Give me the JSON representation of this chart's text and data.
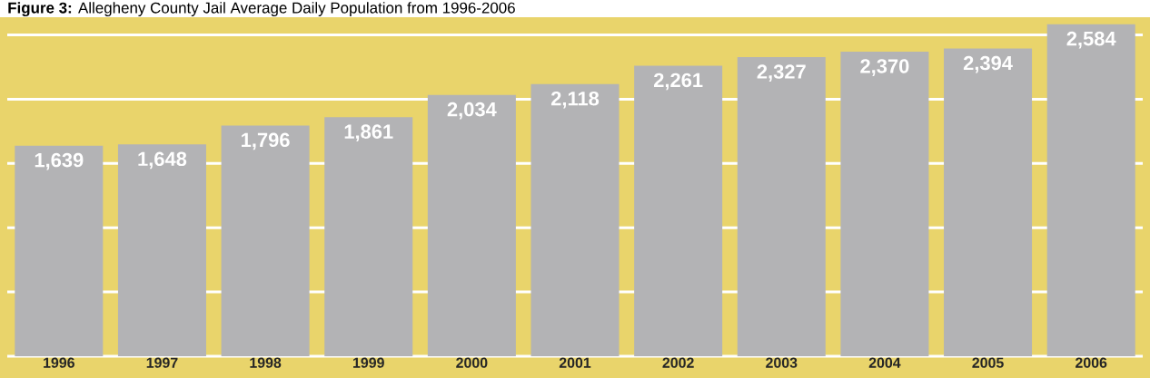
{
  "chart_data": {
    "type": "bar",
    "title": "**Figure 3:** Allegheny County Jail Average Daily Population from 1996-2006",
    "categories": [
      "1996",
      "1997",
      "1998",
      "1999",
      "2000",
      "2001",
      "2002",
      "2003",
      "2004",
      "2005",
      "2006"
    ],
    "values": [
      1639,
      1648,
      1796,
      1861,
      2034,
      2118,
      2261,
      2327,
      2370,
      2394,
      2584
    ],
    "color": "#b3b3b5",
    "value_labels": [
      "1,639",
      "1,648",
      "1,796",
      "1,861",
      "2,034",
      "2,118",
      "2,261",
      "2,327",
      "2,370",
      "2,394",
      "2,584"
    ],
    "grid": "y",
    "tick_labels": "x"
  }
}
